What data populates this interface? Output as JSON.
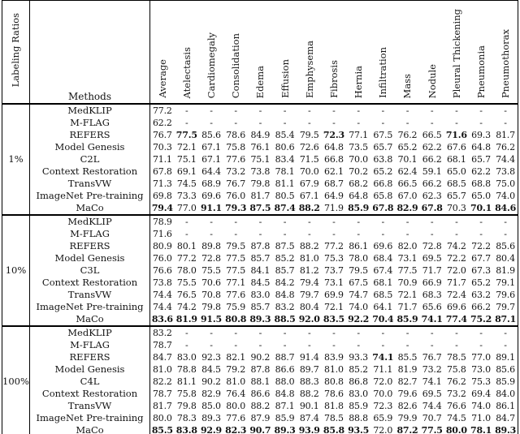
{
  "header": {
    "ratio_label": "Labeling Ratios",
    "methods_label": "Methods",
    "columns": [
      "Average",
      "Atelectasis",
      "Cardiomegaly",
      "Consolidation",
      "Edema",
      "Effusion",
      "Emphysema",
      "Fibrosis",
      "Hernia",
      "Infiltration",
      "Mass",
      "Nodule",
      "Pleural Thickening",
      "Pneumonia",
      "Pneumothorax"
    ]
  },
  "blocks": [
    {
      "ratio": "1%",
      "rows": [
        {
          "method": "MedKLIP",
          "values": [
            "77.2",
            "-",
            "-",
            "-",
            "-",
            "-",
            "-",
            "-",
            "-",
            "-",
            "-",
            "-",
            "-",
            "-",
            "-"
          ],
          "bold": []
        },
        {
          "method": "M-FLAG",
          "values": [
            "62.2",
            "-",
            "-",
            "-",
            "-",
            "-",
            "-",
            "-",
            "-",
            "-",
            "-",
            "-",
            "-",
            "-",
            "-"
          ],
          "bold": []
        },
        {
          "method": "REFERS",
          "values": [
            "76.7",
            "77.5",
            "85.6",
            "78.6",
            "84.9",
            "85.4",
            "79.5",
            "72.3",
            "77.1",
            "67.5",
            "76.2",
            "66.5",
            "71.6",
            "69.3",
            "81.7"
          ],
          "bold": [
            1,
            7,
            12
          ]
        },
        {
          "method": "Model Genesis",
          "values": [
            "70.3",
            "72.1",
            "67.1",
            "75.8",
            "76.1",
            "80.6",
            "72.6",
            "64.8",
            "73.5",
            "65.7",
            "65.2",
            "62.2",
            "67.6",
            "64.8",
            "76.2"
          ],
          "bold": []
        },
        {
          "method": "C2L",
          "values": [
            "71.1",
            "75.1",
            "67.1",
            "77.6",
            "75.1",
            "83.4",
            "71.5",
            "66.8",
            "70.0",
            "63.8",
            "70.1",
            "66.2",
            "68.1",
            "65.7",
            "74.4"
          ],
          "bold": []
        },
        {
          "method": "Context Restoration",
          "values": [
            "67.8",
            "69.1",
            "64.4",
            "73.2",
            "73.8",
            "78.1",
            "70.0",
            "62.1",
            "70.2",
            "65.2",
            "62.4",
            "59.1",
            "65.0",
            "62.2",
            "73.8"
          ],
          "bold": []
        },
        {
          "method": "TransVW",
          "values": [
            "71.3",
            "74.5",
            "68.9",
            "76.7",
            "79.8",
            "81.1",
            "67.9",
            "68.7",
            "68.2",
            "66.8",
            "66.5",
            "66.2",
            "68.5",
            "68.8",
            "75.0"
          ],
          "bold": []
        },
        {
          "method": "ImageNet Pre-training",
          "values": [
            "69.8",
            "73.3",
            "69.6",
            "76.0",
            "81.7",
            "80.5",
            "67.1",
            "64.9",
            "64.8",
            "65.8",
            "67.0",
            "62.3",
            "65.7",
            "65.0",
            "74.0"
          ],
          "bold": []
        },
        {
          "method": "MaCo",
          "values": [
            "79.4",
            "77.0",
            "91.1",
            "79.3",
            "87.5",
            "87.4",
            "88.2",
            "71.9",
            "85.9",
            "67.8",
            "82.9",
            "67.8",
            "70.3",
            "70.1",
            "84.6"
          ],
          "bold": [
            0,
            2,
            3,
            4,
            5,
            6,
            8,
            9,
            10,
            11,
            13,
            14
          ]
        }
      ]
    },
    {
      "ratio": "10%",
      "rows": [
        {
          "method": "MedKLIP",
          "values": [
            "78.9",
            "-",
            "-",
            "-",
            "-",
            "-",
            "-",
            "-",
            "-",
            "-",
            "-",
            "-",
            "-",
            "-",
            "-"
          ],
          "bold": []
        },
        {
          "method": "M-FLAG",
          "values": [
            "71.6",
            "-",
            "-",
            "-",
            "-",
            "-",
            "-",
            "-",
            "-",
            "-",
            "-",
            "-",
            "-",
            "-",
            "-"
          ],
          "bold": []
        },
        {
          "method": "REFERS",
          "values": [
            "80.9",
            "80.1",
            "89.8",
            "79.5",
            "87.8",
            "87.5",
            "88.2",
            "77.2",
            "86.1",
            "69.6",
            "82.0",
            "72.8",
            "74.2",
            "72.2",
            "85.6"
          ],
          "bold": []
        },
        {
          "method": "Model Genesis",
          "values": [
            "76.0",
            "77.2",
            "72.8",
            "77.5",
            "85.7",
            "85.2",
            "81.0",
            "75.3",
            "78.0",
            "68.4",
            "73.1",
            "69.5",
            "72.2",
            "67.7",
            "80.4"
          ],
          "bold": []
        },
        {
          "method": "C3L",
          "values": [
            "76.6",
            "78.0",
            "75.5",
            "77.5",
            "84.1",
            "85.7",
            "81.2",
            "73.7",
            "79.5",
            "67.4",
            "77.5",
            "71.7",
            "72.0",
            "67.3",
            "81.9"
          ],
          "bold": []
        },
        {
          "method": "Context Restoration",
          "values": [
            "73.8",
            "75.5",
            "70.6",
            "77.1",
            "84.5",
            "84.2",
            "79.4",
            "73.1",
            "67.5",
            "68.1",
            "70.9",
            "66.9",
            "71.7",
            "65.2",
            "79.1"
          ],
          "bold": []
        },
        {
          "method": "TransVW",
          "values": [
            "74.4",
            "76.5",
            "70.8",
            "77.6",
            "83.0",
            "84.8",
            "79.7",
            "69.9",
            "74.7",
            "68.5",
            "72.1",
            "68.3",
            "72.4",
            "63.2",
            "79.6"
          ],
          "bold": []
        },
        {
          "method": "ImageNet Pre-training",
          "values": [
            "74.4",
            "74.2",
            "79.8",
            "75.9",
            "85.7",
            "83.2",
            "80.4",
            "72.1",
            "74.0",
            "64.1",
            "71.7",
            "65.6",
            "69.6",
            "66.2",
            "79.7"
          ],
          "bold": []
        },
        {
          "method": "MaCo",
          "values": [
            "83.6",
            "81.9",
            "91.5",
            "80.8",
            "89.3",
            "88.5",
            "92.0",
            "83.5",
            "92.2",
            "70.4",
            "85.9",
            "74.1",
            "77.4",
            "75.2",
            "87.1"
          ],
          "bold": [
            0,
            1,
            2,
            3,
            4,
            5,
            6,
            7,
            8,
            9,
            10,
            11,
            12,
            13,
            14
          ]
        }
      ]
    },
    {
      "ratio": "100%",
      "rows": [
        {
          "method": "MedKLIP",
          "values": [
            "83.2",
            "-",
            "-",
            "-",
            "-",
            "-",
            "-",
            "-",
            "-",
            "-",
            "-",
            "-",
            "-",
            "-",
            "-"
          ],
          "bold": []
        },
        {
          "method": "M-FLAG",
          "values": [
            "78.7",
            "-",
            "-",
            "-",
            "-",
            "-",
            "-",
            "-",
            "-",
            "-",
            "-",
            "-",
            "-",
            "-",
            "-"
          ],
          "bold": []
        },
        {
          "method": "REFERS",
          "values": [
            "84.7",
            "83.0",
            "92.3",
            "82.1",
            "90.2",
            "88.7",
            "91.4",
            "83.9",
            "93.3",
            "74.1",
            "85.5",
            "76.7",
            "78.5",
            "77.0",
            "89.1"
          ],
          "bold": [
            9
          ]
        },
        {
          "method": "Model Genesis",
          "values": [
            "81.0",
            "78.8",
            "84.5",
            "79.2",
            "87.8",
            "86.6",
            "89.7",
            "81.0",
            "85.2",
            "71.1",
            "81.9",
            "73.2",
            "75.8",
            "73.0",
            "85.6"
          ],
          "bold": []
        },
        {
          "method": "C4L",
          "values": [
            "82.2",
            "81.1",
            "90.2",
            "81.0",
            "88.1",
            "88.0",
            "88.3",
            "80.8",
            "86.8",
            "72.0",
            "82.7",
            "74.1",
            "76.2",
            "75.3",
            "85.9"
          ],
          "bold": []
        },
        {
          "method": "Context Restoration",
          "values": [
            "78.7",
            "75.8",
            "82.9",
            "76.4",
            "86.6",
            "84.8",
            "88.2",
            "78.6",
            "83.0",
            "70.0",
            "79.6",
            "69.5",
            "73.2",
            "69.4",
            "84.0"
          ],
          "bold": []
        },
        {
          "method": "TransVW",
          "values": [
            "81.7",
            "79.8",
            "85.0",
            "80.0",
            "88.2",
            "87.1",
            "90.1",
            "81.8",
            "85.9",
            "72.3",
            "82.6",
            "74.4",
            "76.6",
            "74.0",
            "86.1"
          ],
          "bold": []
        },
        {
          "method": "ImageNet Pre-training",
          "values": [
            "80.0",
            "78.3",
            "89.3",
            "77.6",
            "87.9",
            "85.9",
            "87.4",
            "78.5",
            "88.8",
            "65.9",
            "79.9",
            "70.7",
            "74.5",
            "71.0",
            "84.7"
          ],
          "bold": []
        },
        {
          "method": "MaCo",
          "values": [
            "85.5",
            "83.8",
            "92.9",
            "82.3",
            "90.7",
            "89.3",
            "93.9",
            "85.8",
            "93.5",
            "72.0",
            "87.2",
            "77.5",
            "80.0",
            "78.1",
            "89.3"
          ],
          "bold": [
            0,
            1,
            2,
            3,
            4,
            5,
            6,
            7,
            8,
            10,
            11,
            12,
            13,
            14
          ]
        }
      ]
    }
  ]
}
